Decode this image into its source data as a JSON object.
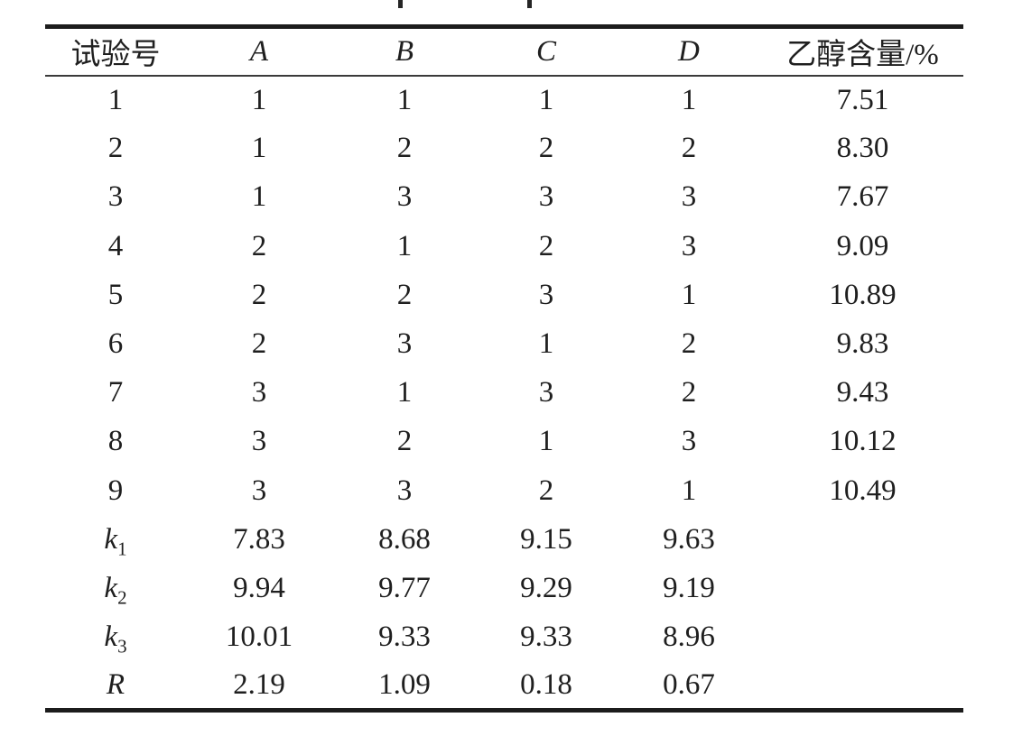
{
  "table": {
    "columns": [
      "试验号",
      "A",
      "B",
      "C",
      "D",
      "乙醇含量/%"
    ],
    "rows": [
      {
        "label": "1",
        "sub": "",
        "values": [
          "1",
          "1",
          "1",
          "1",
          "7.51"
        ]
      },
      {
        "label": "2",
        "sub": "",
        "values": [
          "1",
          "2",
          "2",
          "2",
          "8.30"
        ]
      },
      {
        "label": "3",
        "sub": "",
        "values": [
          "1",
          "3",
          "3",
          "3",
          "7.67"
        ]
      },
      {
        "label": "4",
        "sub": "",
        "values": [
          "2",
          "1",
          "2",
          "3",
          "9.09"
        ]
      },
      {
        "label": "5",
        "sub": "",
        "values": [
          "2",
          "2",
          "3",
          "1",
          "10.89"
        ]
      },
      {
        "label": "6",
        "sub": "",
        "values": [
          "2",
          "3",
          "1",
          "2",
          "9.83"
        ]
      },
      {
        "label": "7",
        "sub": "",
        "values": [
          "3",
          "1",
          "3",
          "2",
          "9.43"
        ]
      },
      {
        "label": "8",
        "sub": "",
        "values": [
          "3",
          "2",
          "1",
          "3",
          "10.12"
        ]
      },
      {
        "label": "9",
        "sub": "",
        "values": [
          "3",
          "3",
          "2",
          "1",
          "10.49"
        ]
      },
      {
        "label": "k",
        "sub": "1",
        "values": [
          "7.83",
          "8.68",
          "9.15",
          "9.63",
          ""
        ]
      },
      {
        "label": "k",
        "sub": "2",
        "values": [
          "9.94",
          "9.77",
          "9.29",
          "9.19",
          ""
        ]
      },
      {
        "label": "k",
        "sub": "3",
        "values": [
          "10.01",
          "9.33",
          "9.33",
          "8.96",
          ""
        ]
      },
      {
        "label": "R",
        "sub": "",
        "values": [
          "2.19",
          "1.09",
          "0.18",
          "0.67",
          ""
        ]
      }
    ]
  }
}
